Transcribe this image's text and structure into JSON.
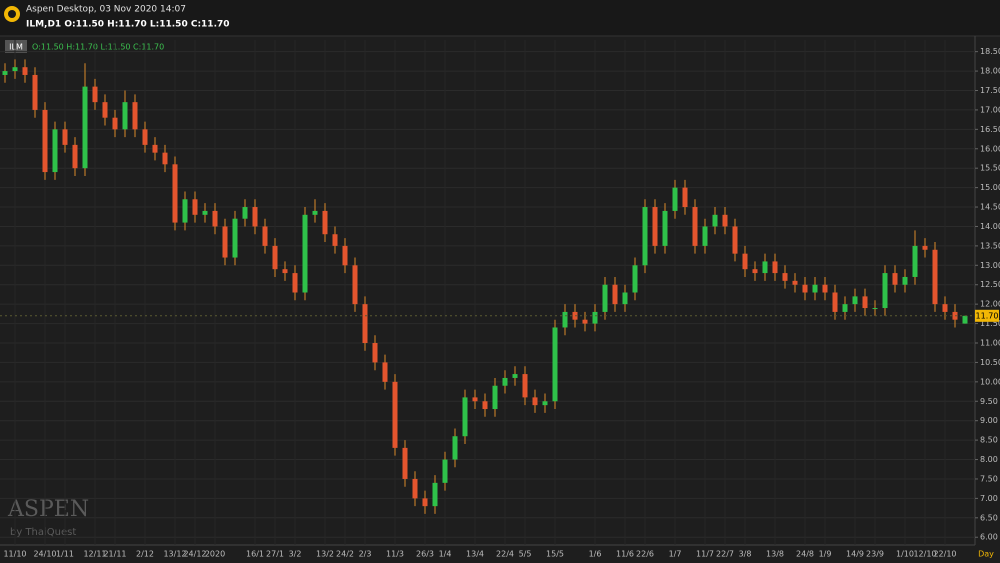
{
  "header": {
    "title": "Aspen Desktop, 03 Nov 2020 14:07",
    "symbol_line": "ILM,D1 O:11.50 H:11.70 L:11.50 C:11.70"
  },
  "chart_data": {
    "type": "candlestick",
    "symbol_label": "ILM",
    "ohlc_label": "O:11.50 H:11.70 L:11.50 C:11.70",
    "watermark": "ASPEN",
    "watermark_sub": "by ThaiQuest",
    "x_unit": "Day",
    "categories": [
      null,
      "11/10",
      null,
      null,
      "24/10",
      null,
      "1/11",
      null,
      null,
      "12/11",
      null,
      "21/11",
      null,
      null,
      "2/12",
      null,
      null,
      "13/12",
      null,
      "24/12",
      null,
      "2020",
      null,
      null,
      null,
      "16/1",
      null,
      "27/1",
      null,
      "3/2",
      null,
      null,
      "13/2",
      null,
      "24/2",
      null,
      "2/3",
      null,
      null,
      "11/3",
      null,
      null,
      "26/3",
      null,
      "1/4",
      null,
      null,
      "13/4",
      null,
      null,
      "22/4",
      null,
      "5/5",
      null,
      null,
      "15/5",
      null,
      null,
      null,
      "1/6",
      null,
      null,
      "11/6",
      null,
      "22/6",
      null,
      null,
      "1/7",
      null,
      null,
      "11/7",
      null,
      "22/7",
      null,
      "3/8",
      null,
      null,
      "13/8",
      null,
      null,
      "24/8",
      null,
      "1/9",
      null,
      null,
      "14/9",
      null,
      "23/9",
      null,
      null,
      "1/10",
      null,
      "12/10",
      null,
      "22/10",
      null,
      null
    ],
    "open": [
      17.9,
      18.0,
      18.1,
      17.9,
      17.0,
      15.4,
      16.5,
      16.1,
      15.5,
      17.6,
      17.2,
      16.8,
      16.5,
      17.2,
      16.5,
      16.1,
      15.9,
      15.6,
      14.1,
      14.7,
      14.3,
      14.4,
      14.0,
      13.2,
      14.2,
      14.5,
      14.0,
      13.5,
      12.9,
      12.8,
      12.3,
      14.3,
      14.4,
      13.8,
      13.5,
      13.0,
      12.0,
      11.0,
      10.5,
      10.0,
      8.3,
      7.5,
      7.0,
      6.8,
      7.4,
      8.0,
      8.6,
      9.6,
      9.5,
      9.3,
      9.9,
      10.1,
      10.2,
      9.6,
      9.4,
      9.5,
      11.4,
      11.8,
      11.6,
      11.5,
      11.8,
      12.5,
      12.0,
      12.3,
      13.0,
      14.5,
      13.5,
      14.4,
      15.0,
      14.5,
      13.5,
      14.0,
      14.3,
      14.0,
      13.3,
      12.9,
      12.8,
      13.1,
      12.8,
      12.6,
      12.5,
      12.3,
      12.5,
      12.3,
      11.8,
      12.0,
      12.2,
      11.9,
      11.9,
      12.8,
      12.5,
      12.7,
      13.5,
      13.4,
      12.0,
      11.8,
      11.5
    ],
    "high": [
      18.2,
      18.3,
      18.3,
      18.1,
      17.2,
      16.7,
      16.7,
      16.3,
      18.2,
      17.8,
      17.4,
      17.0,
      17.5,
      17.4,
      16.7,
      16.3,
      16.1,
      15.8,
      14.9,
      14.9,
      14.6,
      14.6,
      14.2,
      14.4,
      14.7,
      14.7,
      14.2,
      13.7,
      13.1,
      13.0,
      14.5,
      14.7,
      14.6,
      14.0,
      13.7,
      13.2,
      12.2,
      11.2,
      10.7,
      10.2,
      8.5,
      7.7,
      7.2,
      7.6,
      8.2,
      8.8,
      9.8,
      9.8,
      9.7,
      10.1,
      10.3,
      10.4,
      10.4,
      9.8,
      9.7,
      11.6,
      12.0,
      12.0,
      11.8,
      12.0,
      12.7,
      12.7,
      12.5,
      13.2,
      14.7,
      14.7,
      14.6,
      15.2,
      15.2,
      14.7,
      14.2,
      14.5,
      14.5,
      14.2,
      13.5,
      13.1,
      13.3,
      13.3,
      13.0,
      12.8,
      12.7,
      12.7,
      12.7,
      12.5,
      12.2,
      12.4,
      12.4,
      12.1,
      13.0,
      13.0,
      12.9,
      13.9,
      13.7,
      13.6,
      12.2,
      12.0,
      11.7
    ],
    "low": [
      17.7,
      17.8,
      17.7,
      16.8,
      15.2,
      15.2,
      15.9,
      15.3,
      15.3,
      17.0,
      16.6,
      16.3,
      16.3,
      16.3,
      15.9,
      15.7,
      15.4,
      13.9,
      13.9,
      14.1,
      14.1,
      13.8,
      13.0,
      13.0,
      14.0,
      13.8,
      13.3,
      12.7,
      12.6,
      12.1,
      12.1,
      14.1,
      13.6,
      13.3,
      12.8,
      11.8,
      10.8,
      10.3,
      9.8,
      8.1,
      7.3,
      6.8,
      6.6,
      6.6,
      7.2,
      7.8,
      8.4,
      9.3,
      9.1,
      9.1,
      9.7,
      9.9,
      9.4,
      9.2,
      9.2,
      9.3,
      11.2,
      11.4,
      11.3,
      11.3,
      11.6,
      11.8,
      11.8,
      12.1,
      12.8,
      13.3,
      13.3,
      14.2,
      14.3,
      13.3,
      13.3,
      13.8,
      13.8,
      13.1,
      12.7,
      12.6,
      12.6,
      12.6,
      12.4,
      12.3,
      12.1,
      12.1,
      12.1,
      11.6,
      11.6,
      11.8,
      11.7,
      11.7,
      11.7,
      12.3,
      12.3,
      12.5,
      13.2,
      11.8,
      11.6,
      11.4,
      11.5
    ],
    "close": [
      18.0,
      18.1,
      17.9,
      17.0,
      15.4,
      16.5,
      16.1,
      15.5,
      17.6,
      17.2,
      16.8,
      16.5,
      17.2,
      16.5,
      16.1,
      15.9,
      15.6,
      14.1,
      14.7,
      14.3,
      14.4,
      14.0,
      13.2,
      14.2,
      14.5,
      14.0,
      13.5,
      12.9,
      12.8,
      12.3,
      14.3,
      14.4,
      13.8,
      13.5,
      13.0,
      12.0,
      11.0,
      10.5,
      10.0,
      8.3,
      7.5,
      7.0,
      6.8,
      7.4,
      8.0,
      8.6,
      9.6,
      9.5,
      9.3,
      9.9,
      10.1,
      10.2,
      9.6,
      9.4,
      9.5,
      11.4,
      11.8,
      11.6,
      11.5,
      11.8,
      12.5,
      12.0,
      12.3,
      13.0,
      14.5,
      13.5,
      14.4,
      15.0,
      14.5,
      13.5,
      14.0,
      14.3,
      14.0,
      13.3,
      12.9,
      12.8,
      13.1,
      12.8,
      12.6,
      12.5,
      12.3,
      12.5,
      12.3,
      11.8,
      12.0,
      12.2,
      11.9,
      11.9,
      12.8,
      12.5,
      12.7,
      13.5,
      13.4,
      12.0,
      11.8,
      11.6,
      11.7
    ],
    "up_color": "#2fc24a",
    "down_color": "#e4552e",
    "wick_color": "#d9892a",
    "ylim": [
      5.8,
      18.8
    ],
    "yticks": [
      {
        "value": 6,
        "label": "6.00"
      },
      {
        "value": 6.5,
        "label": "6.50"
      },
      {
        "value": 7,
        "label": "7.00"
      },
      {
        "value": 7.5,
        "label": "7.50"
      },
      {
        "value": 8,
        "label": "8.00"
      },
      {
        "value": 8.5,
        "label": "8.50"
      },
      {
        "value": 9,
        "label": "9.00"
      },
      {
        "value": 9.5,
        "label": "9.50"
      },
      {
        "value": 10,
        "label": "10.00"
      },
      {
        "value": 10.5,
        "label": "10.50"
      },
      {
        "value": 11,
        "label": "11.00"
      },
      {
        "value": 11.5,
        "label": "11.50"
      },
      {
        "value": 12,
        "label": "12.00"
      },
      {
        "value": 12.5,
        "label": "12.50"
      },
      {
        "value": 13,
        "label": "13.00"
      },
      {
        "value": 13.5,
        "label": "13.50"
      },
      {
        "value": 14,
        "label": "14.00"
      },
      {
        "value": 14.5,
        "label": "14.50"
      },
      {
        "value": 15,
        "label": "15.00"
      },
      {
        "value": 15.5,
        "label": "15.50"
      },
      {
        "value": 16,
        "label": "16.00"
      },
      {
        "value": 16.5,
        "label": "16.50"
      },
      {
        "value": 17,
        "label": "17.00"
      },
      {
        "value": 17.5,
        "label": "17.50"
      },
      {
        "value": 18,
        "label": "18.00"
      },
      {
        "value": 18.5,
        "label": "18.50"
      }
    ],
    "grid": true,
    "last_price": {
      "value": 11.7,
      "label": "11.70"
    }
  }
}
